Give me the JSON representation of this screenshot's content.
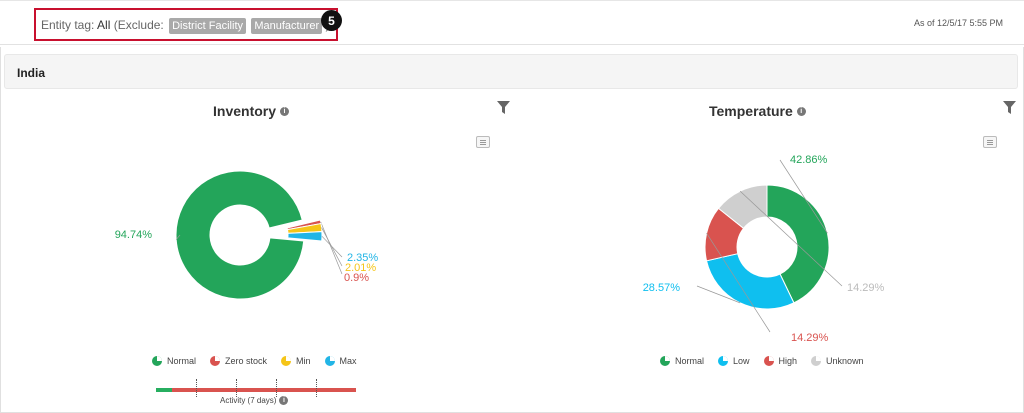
{
  "filter": {
    "label": "Entity tag:",
    "value": "All",
    "exclude_prefix": "(Exclude:",
    "exclude_tags": [
      "District Facility",
      "Manufacturer"
    ],
    "exclude_suffix": ")",
    "step_badge": "5"
  },
  "as_of": "As of 12/5/17 5:55 PM",
  "region": {
    "title": "India"
  },
  "panels": {
    "inventory": {
      "title": "Inventory",
      "activity_label": "Activity (7 days)",
      "activity_normal_fraction": 0.08
    },
    "temperature": {
      "title": "Temperature"
    }
  },
  "chart_data": [
    {
      "type": "pie",
      "title": "Inventory",
      "labels": [
        "Normal",
        "Zero stock",
        "Min",
        "Max"
      ],
      "values": [
        94.74,
        0.9,
        2.01,
        2.35
      ],
      "value_labels": [
        "94.74%",
        "0.9%",
        "2.01%",
        "2.35%"
      ],
      "colors": [
        "#23a55a",
        "#d9534f",
        "#f5c518",
        "#22b5e6"
      ],
      "legend": "bottom"
    },
    {
      "type": "pie",
      "title": "Temperature",
      "labels": [
        "Normal",
        "Low",
        "High",
        "Unknown"
      ],
      "values": [
        42.86,
        28.57,
        14.29,
        14.29
      ],
      "value_labels": [
        "42.86%",
        "28.57%",
        "14.29%",
        "14.29%"
      ],
      "colors": [
        "#23a55a",
        "#0fbfef",
        "#d9534f",
        "#cfcfcf"
      ],
      "legend": "bottom"
    }
  ]
}
